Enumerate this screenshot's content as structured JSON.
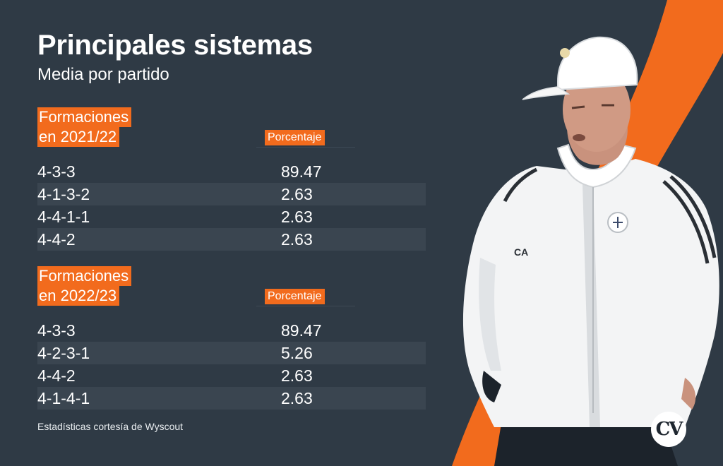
{
  "header": {
    "title": "Principales sistemas",
    "subtitle": "Media por partido"
  },
  "sections": [
    {
      "label_line1": "Formaciones",
      "label_line2": "en 2021/22",
      "column_label": "Porcentaje",
      "rows": [
        {
          "formation": "4-3-3",
          "value": "89.47"
        },
        {
          "formation": "4-1-3-2",
          "value": "2.63"
        },
        {
          "formation": "4-4-1-1",
          "value": "2.63"
        },
        {
          "formation": "4-4-2",
          "value": "2.63"
        }
      ]
    },
    {
      "label_line1": "Formaciones",
      "label_line2": "en 2022/23",
      "column_label": "Porcentaje",
      "rows": [
        {
          "formation": "4-3-3",
          "value": "89.47"
        },
        {
          "formation": "4-2-3-1",
          "value": "5.26"
        },
        {
          "formation": "4-4-2",
          "value": "2.63"
        },
        {
          "formation": "4-1-4-1",
          "value": "2.63"
        }
      ]
    }
  ],
  "footer": {
    "credit": "Estadísticas cortesía de Wyscout",
    "logo_text": "CV"
  },
  "colors": {
    "background": "#2f3a45",
    "accent": "#f26b1d",
    "row_shade": "#3a4550"
  },
  "icons": {
    "coach_photo": "coach-photo",
    "brand_logo": "cv-logo-icon"
  }
}
